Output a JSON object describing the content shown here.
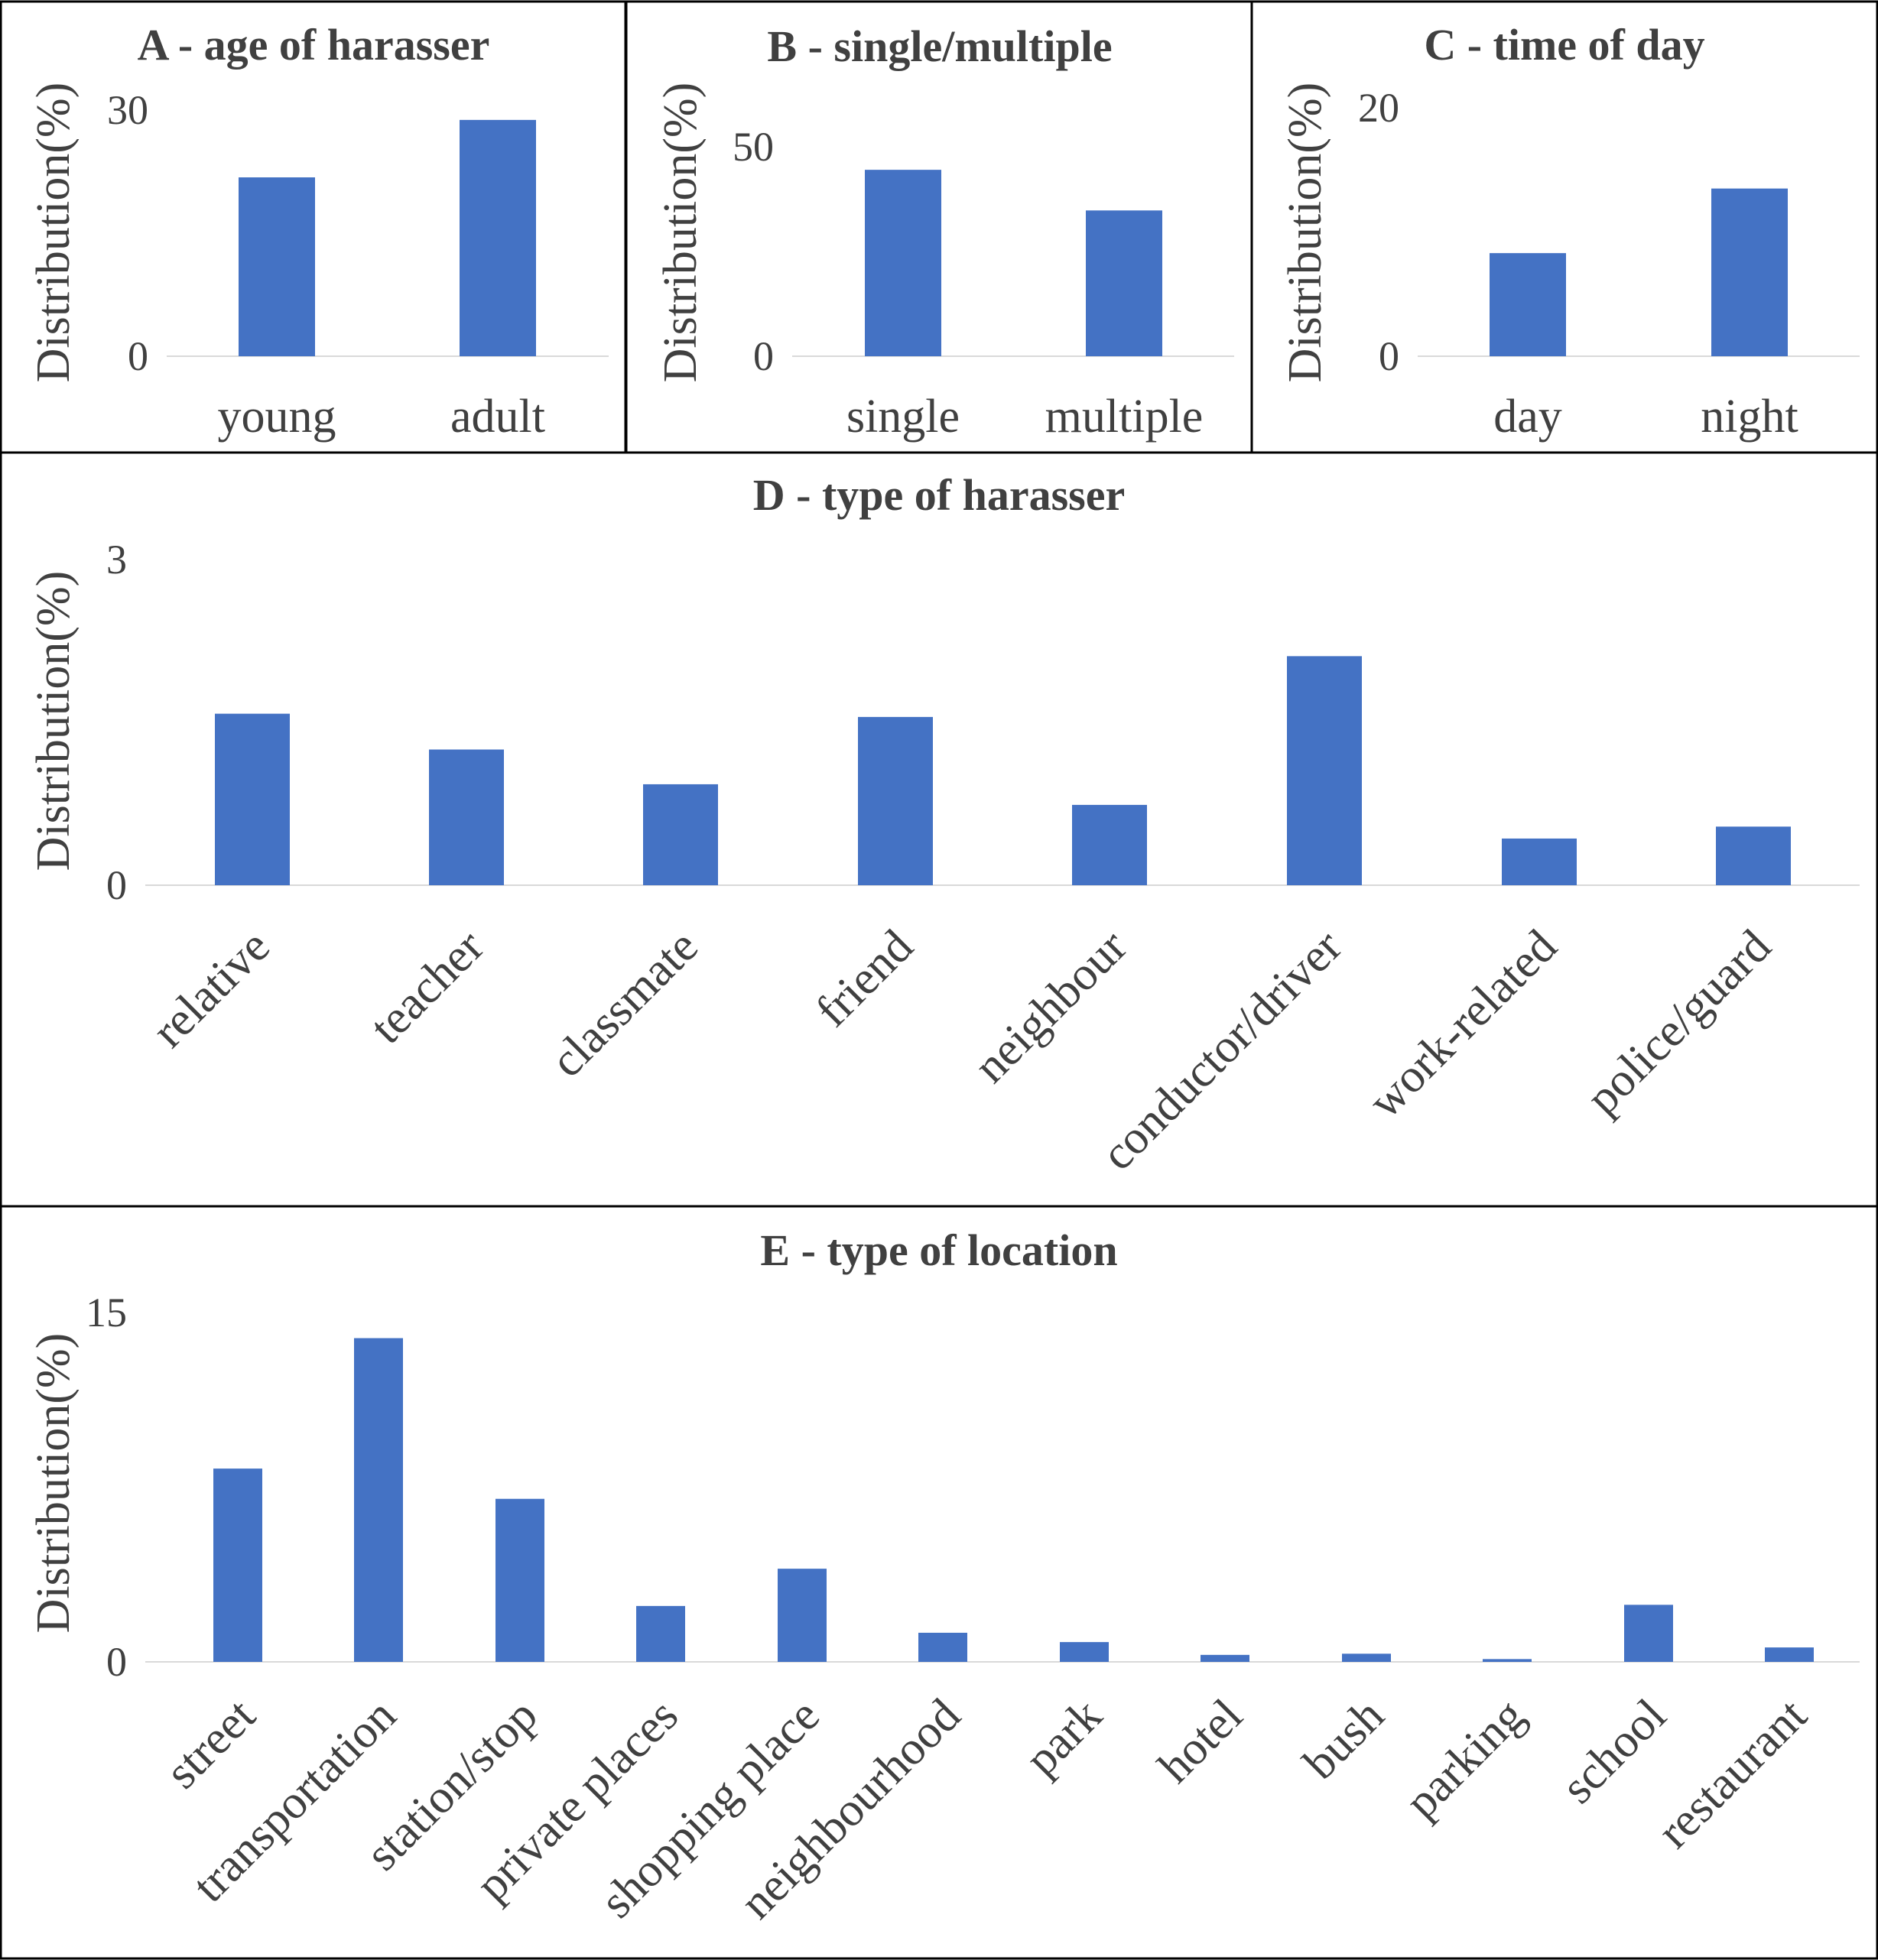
{
  "chart_data": [
    {
      "id": "A",
      "type": "bar",
      "title": "A - age of harasser",
      "ylabel": "Distribution(%)",
      "xlabel": "",
      "ylim": [
        0,
        30
      ],
      "yticks": [
        "0",
        "30"
      ],
      "categories": [
        "young",
        "adult"
      ],
      "values": [
        21.8,
        28.8
      ],
      "color": "#4472C4",
      "grid": false
    },
    {
      "id": "B",
      "type": "bar",
      "title": "B - single/multiple",
      "ylabel": "Distribution(%)",
      "xlabel": "",
      "ylim": [
        0,
        50
      ],
      "yticks": [
        "0",
        "50"
      ],
      "categories": [
        "single",
        "multiple"
      ],
      "values": [
        44.5,
        34.8
      ],
      "color": "#4472C4",
      "grid": false
    },
    {
      "id": "C",
      "type": "bar",
      "title": "C - time of day",
      "ylabel": "Distribution(%)",
      "xlabel": "",
      "ylim": [
        0,
        20
      ],
      "yticks": [
        "0",
        "20"
      ],
      "categories": [
        "day",
        "night"
      ],
      "values": [
        8.3,
        13.5
      ],
      "color": "#4472C4",
      "grid": false
    },
    {
      "id": "D",
      "type": "bar",
      "title": "D - type of harasser",
      "ylabel": "Distribution(%)",
      "xlabel": "",
      "ylim": [
        0,
        3
      ],
      "yticks": [
        "0",
        "3"
      ],
      "categories": [
        "relative",
        "teacher",
        "classmate",
        "friend",
        "neighbour",
        "conductor/driver",
        "work-related",
        "police/guard"
      ],
      "values": [
        1.58,
        1.25,
        0.93,
        1.55,
        0.74,
        2.11,
        0.43,
        0.54
      ],
      "color": "#4472C4",
      "grid": false
    },
    {
      "id": "E",
      "type": "bar",
      "title": "E - type of location",
      "ylabel": "Distribution(%)",
      "xlabel": "",
      "ylim": [
        0,
        15
      ],
      "yticks": [
        "0",
        "15"
      ],
      "categories": [
        "street",
        "transportation",
        "station/stop",
        "private places",
        "shopping place",
        "neighbourhood",
        "park",
        "hotel",
        "bush",
        "parking",
        "school",
        "restaurant"
      ],
      "values": [
        8.3,
        13.9,
        7.0,
        2.4,
        4.0,
        1.25,
        0.85,
        0.3,
        0.35,
        0.12,
        2.45,
        0.62
      ],
      "color": "#4472C4",
      "grid": false
    }
  ]
}
